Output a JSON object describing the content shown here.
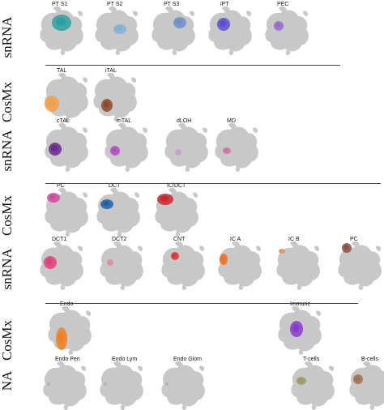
{
  "rows": [
    {
      "label": "snRNA",
      "panels": [
        {
          "name": "PT S1",
          "color": "#2aa1a1"
        },
        {
          "name": "PT S2",
          "color": "#7fb3d5"
        },
        {
          "name": "PT S3",
          "color": "#6f8fc7"
        },
        {
          "name": "iPT",
          "color": "#5b4fd1"
        },
        {
          "name": "PEC",
          "color": "#9a6ad0"
        }
      ]
    },
    {
      "label": "CosMx",
      "panels": [
        {
          "name": "TAL",
          "color": "#f0a04b"
        },
        {
          "name": "iTAL",
          "color": "#8b4a2b"
        }
      ]
    },
    {
      "label": "snRNA",
      "panels": [
        {
          "name": "cTAL",
          "color": "#6a2a8a"
        },
        {
          "name": "mTAL",
          "color": "#b04cc0"
        },
        {
          "name": "dLOH",
          "color": "#c9a0c9"
        },
        {
          "name": "MD",
          "color": "#d070a0"
        }
      ]
    },
    {
      "label": "CosMx",
      "panels": [
        {
          "name": "PC",
          "color": "#d04aa0"
        },
        {
          "name": "DCT",
          "color": "#1f5fa8"
        },
        {
          "name": "IC/DCT",
          "color": "#c8282e"
        }
      ]
    },
    {
      "label": "snRNA",
      "panels": [
        {
          "name": "DCT1",
          "color": "#e0407a"
        },
        {
          "name": "DCT2",
          "color": "#e08aa0"
        },
        {
          "name": "CNT",
          "color": "#e03030"
        },
        {
          "name": "IC A",
          "color": "#f07020"
        },
        {
          "name": "IC B",
          "color": "#e09060"
        },
        {
          "name": "PC",
          "color": "#8a5040"
        }
      ]
    },
    {
      "label": "CosMx",
      "panels": [
        {
          "name": "Endo",
          "color": "#f08020"
        },
        {
          "name": "Immune",
          "color": "#8a3ad0"
        }
      ]
    },
    {
      "label": "NA",
      "panels": [
        {
          "name": "Endo Peri",
          "color": "#b0b0b0"
        },
        {
          "name": "Endo Lym",
          "color": "#b0b0b0"
        },
        {
          "name": "Endo Glom",
          "color": "#b0b0b0"
        },
        {
          "name": "T-cells",
          "color": "#9a9a60"
        },
        {
          "name": "B-cells",
          "color": "#a07050"
        }
      ]
    }
  ],
  "colors": {
    "umap_gray": "#c8c8c8",
    "label_text": "#111111",
    "divider": "#444444"
  }
}
